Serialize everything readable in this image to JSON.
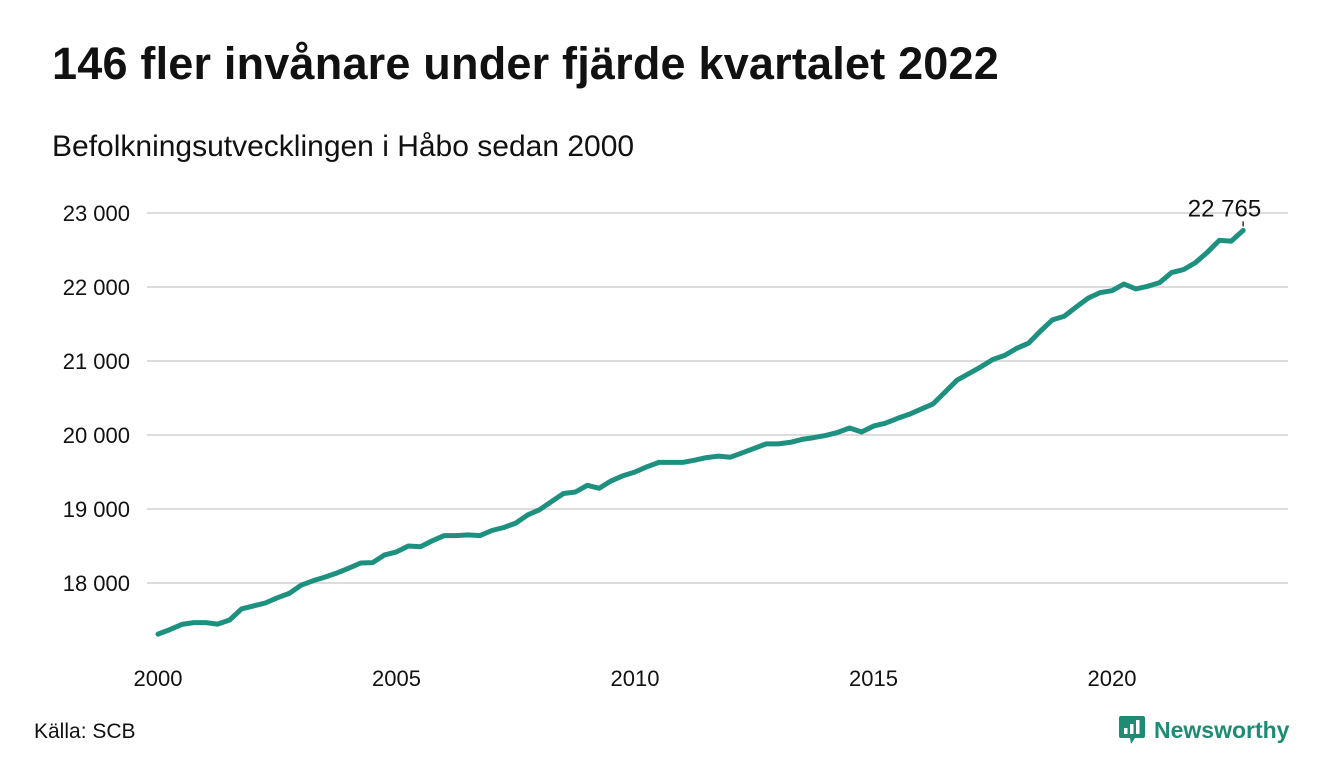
{
  "title": "146 fler invånare under fjärde kvartalet 2022",
  "subtitle": "Befolkningsutvecklingen i Håbo sedan 2000",
  "source": "Källa: SCB",
  "brand": {
    "name": "Newsworthy",
    "color": "#1e8c73"
  },
  "colors": {
    "line": "#1e9080",
    "grid": "#dcdcdc"
  },
  "chart_data": {
    "type": "line",
    "title": "146 fler invånare under fjärde kvartalet 2022",
    "xlabel": "",
    "ylabel": "",
    "xlim": [
      2000,
      2023
    ],
    "ylim": [
      17100,
      23300
    ],
    "grid": true,
    "y_ticks": [
      18000,
      19000,
      20000,
      21000,
      22000,
      23000
    ],
    "y_tick_labels": [
      "18 000",
      "19 000",
      "20 000",
      "21 000",
      "22 000",
      "23 000"
    ],
    "x_ticks": [
      2000,
      2005,
      2010,
      2015,
      2020
    ],
    "x_tick_labels": [
      "2000",
      "2005",
      "2010",
      "2015",
      "2020"
    ],
    "end_label": "22 765",
    "series": [
      {
        "name": "",
        "x": [
          2000.0,
          2000.25,
          2000.5,
          2000.75,
          2001.0,
          2001.25,
          2001.5,
          2001.75,
          2002.0,
          2002.25,
          2002.5,
          2002.75,
          2003.0,
          2003.25,
          2003.5,
          2003.75,
          2004.0,
          2004.25,
          2004.5,
          2004.75,
          2005.0,
          2005.25,
          2005.5,
          2005.75,
          2006.0,
          2006.25,
          2006.5,
          2006.75,
          2007.0,
          2007.25,
          2007.5,
          2007.75,
          2008.0,
          2008.25,
          2008.5,
          2008.75,
          2009.0,
          2009.25,
          2009.5,
          2009.75,
          2010.0,
          2010.25,
          2010.5,
          2010.75,
          2011.0,
          2011.25,
          2011.5,
          2011.75,
          2012.0,
          2012.25,
          2012.5,
          2012.75,
          2013.0,
          2013.25,
          2013.5,
          2013.75,
          2014.0,
          2014.25,
          2014.5,
          2014.75,
          2015.0,
          2015.25,
          2015.5,
          2015.75,
          2016.0,
          2016.25,
          2016.5,
          2016.75,
          2017.0,
          2017.25,
          2017.5,
          2017.75,
          2018.0,
          2018.25,
          2018.5,
          2018.75,
          2019.0,
          2019.25,
          2019.5,
          2019.75,
          2020.0,
          2020.25,
          2020.5,
          2020.75,
          2021.0,
          2021.25,
          2021.5,
          2021.75,
          2022.0,
          2022.25,
          2022.5,
          2022.75
        ],
        "values": [
          17310,
          17370,
          17440,
          17465,
          17465,
          17445,
          17500,
          17650,
          17690,
          17730,
          17800,
          17860,
          17970,
          18030,
          18080,
          18135,
          18200,
          18270,
          18275,
          18380,
          18420,
          18500,
          18490,
          18570,
          18640,
          18640,
          18650,
          18640,
          18710,
          18750,
          18810,
          18920,
          18990,
          19100,
          19210,
          19230,
          19320,
          19280,
          19380,
          19450,
          19500,
          19570,
          19630,
          19630,
          19630,
          19660,
          19695,
          19715,
          19700,
          19760,
          19820,
          19880,
          19880,
          19900,
          19940,
          19965,
          19995,
          20035,
          20095,
          20040,
          20120,
          20160,
          20225,
          20280,
          20350,
          20420,
          20580,
          20740,
          20830,
          20920,
          21020,
          21075,
          21170,
          21240,
          21405,
          21555,
          21605,
          21730,
          21850,
          21925,
          21950,
          22040,
          21975,
          22010,
          22060,
          22195,
          22235,
          22330,
          22470,
          22630,
          22620,
          22765
        ]
      }
    ]
  }
}
